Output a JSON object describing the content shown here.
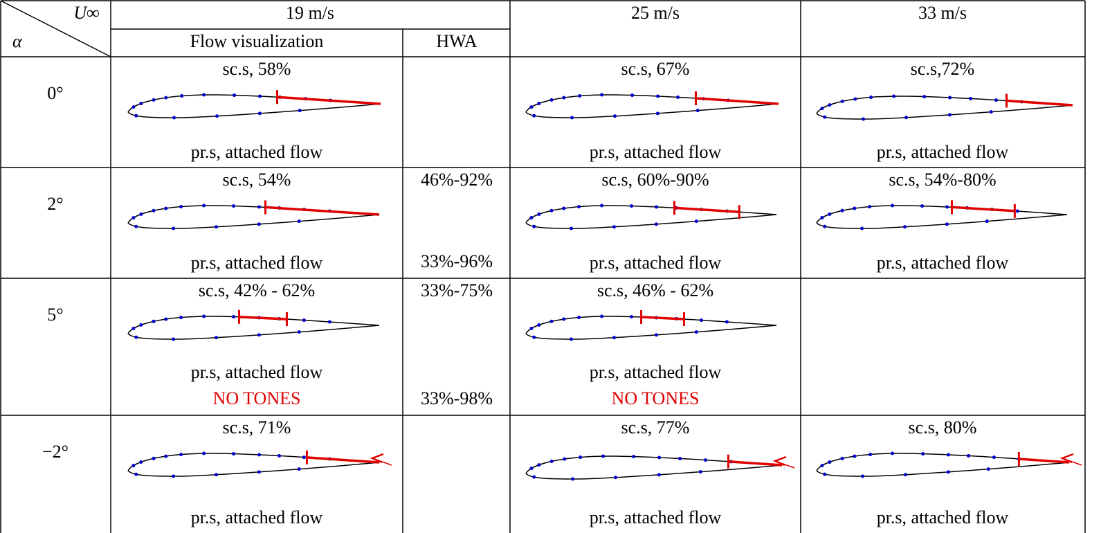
{
  "header": {
    "u_inf": "U∞",
    "alpha": "α",
    "speeds": [
      "19 m/s",
      "25 m/s",
      "33 m/s"
    ],
    "sub": [
      "Flow visualization",
      "HWA"
    ]
  },
  "rows": [
    {
      "alpha": "0°",
      "v19": {
        "top": "sc.s, 58%",
        "bottom": "pr.s, attached flow"
      },
      "v25": {
        "top": "sc.s, 67%",
        "bottom": "pr.s, attached flow"
      },
      "v33": {
        "top": "sc.s,72%",
        "bottom": "pr.s, attached flow"
      }
    },
    {
      "alpha": "2°",
      "v19": {
        "top": "sc.s, 54%",
        "bottom": "pr.s, attached flow"
      },
      "hwa": {
        "top": "46%-92%",
        "bottom": "33%-96%"
      },
      "v25": {
        "top": "sc.s, 60%-90%",
        "bottom": "pr.s, attached flow"
      },
      "v33": {
        "top": "sc.s, 54%-80%",
        "bottom": "pr.s, attached flow"
      }
    },
    {
      "alpha": "5°",
      "v19": {
        "top": "sc.s, 42% - 62%",
        "bottom": "pr.s, attached flow",
        "note": "NO TONES"
      },
      "hwa": {
        "top": "33%-75%",
        "bottom": "33%-98%"
      },
      "v25": {
        "top": "sc.s, 46% - 62%",
        "bottom": "pr.s, attached flow",
        "note": "NO TONES"
      }
    },
    {
      "alpha": "−2°",
      "v19": {
        "top": "sc.s, 71%",
        "bottom": "pr.s, attached flow"
      },
      "v25": {
        "top": "sc.s, 77%",
        "bottom": "pr.s, attached flow"
      },
      "v33": {
        "top": "sc.s, 80%",
        "bottom": "pr.s, attached flow"
      }
    }
  ]
}
